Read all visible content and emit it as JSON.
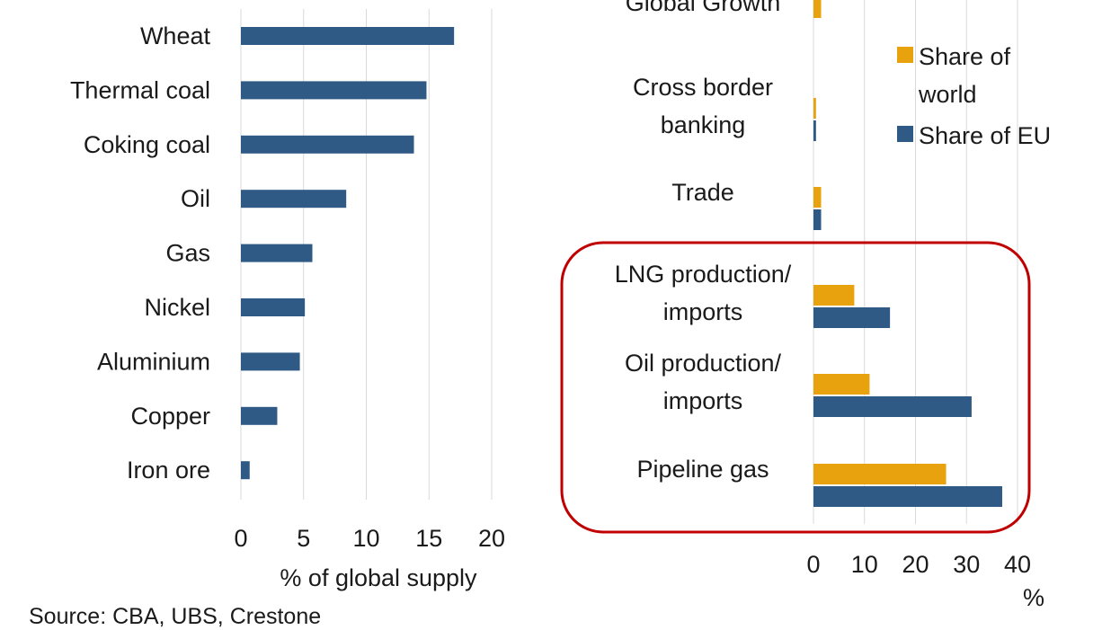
{
  "colors": {
    "eu": "#2f5a86",
    "world": "#e8a20e",
    "grid": "#d9d9d9",
    "highlight": "#c00000"
  },
  "chart_data": [
    {
      "type": "bar",
      "orientation": "horizontal",
      "categories": [
        "Wheat",
        "Thermal coal",
        "Coking coal",
        "Oil",
        "Gas",
        "Nickel",
        "Aluminium",
        "Copper",
        "Iron ore"
      ],
      "series": [
        {
          "values": [
            17,
            14.8,
            13.8,
            8.4,
            5.7,
            5.1,
            4.7,
            2.9,
            0.7
          ]
        }
      ],
      "xlim": [
        0,
        20
      ],
      "xticks": [
        0,
        5,
        10,
        15,
        20
      ],
      "xlabel": "% of global supply",
      "grid": true
    },
    {
      "type": "bar",
      "orientation": "horizontal",
      "categories": [
        [
          "Global Growth"
        ],
        [
          "Cross border",
          "banking"
        ],
        [
          "Trade"
        ],
        [
          "LNG production/",
          "imports"
        ],
        [
          "Oil production/",
          "imports"
        ],
        [
          "Pipeline gas"
        ]
      ],
      "series": [
        {
          "name": "Share of world",
          "values": [
            1.5,
            0.5,
            1.5,
            8,
            11,
            26
          ]
        },
        {
          "name": "Share of EU",
          "values": [
            0,
            0.5,
            1.5,
            15,
            31,
            37
          ]
        }
      ],
      "legend_lines": [
        [
          "Share of",
          "world"
        ],
        [
          "Share of EU"
        ]
      ],
      "xlim": [
        0,
        40
      ],
      "xticks": [
        0,
        10,
        20,
        30,
        40
      ],
      "xlabel": "%",
      "grid": true,
      "legend": "top-right"
    }
  ],
  "source": "Source: CBA, UBS, Crestone"
}
